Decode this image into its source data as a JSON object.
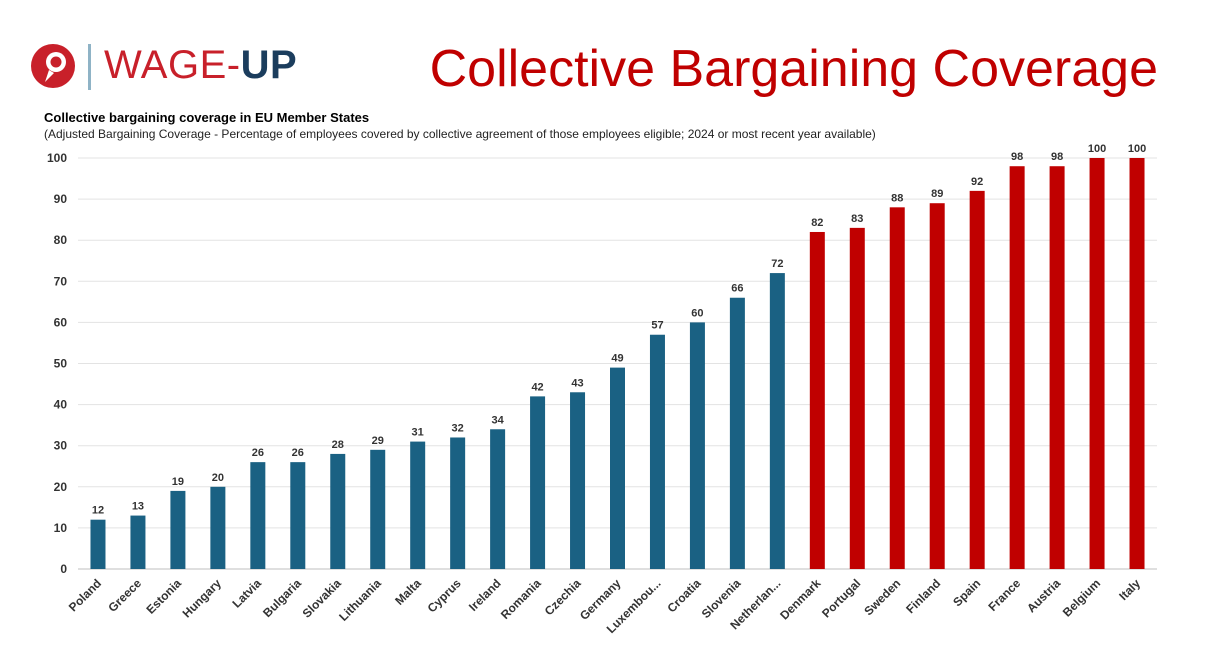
{
  "header": {
    "brand_part1": "WAGE-",
    "brand_part2": "UP",
    "page_title": "Collective Bargaining Coverage",
    "brand_red": "#c8202a",
    "brand_blue": "#1b3d5d"
  },
  "chart_data": {
    "type": "bar",
    "title": "Collective bargaining coverage in EU Member States",
    "subtitle": "(Adjusted Bargaining Coverage - Percentage of employees covered by collective agreement of those employees eligible; 2024 or most recent year available)",
    "xlabel": "",
    "ylabel": "",
    "ylim": [
      0,
      100
    ],
    "yticks": [
      0,
      10,
      20,
      30,
      40,
      50,
      60,
      70,
      80,
      90,
      100
    ],
    "grid": true,
    "categories": [
      "Poland",
      "Greece",
      "Estonia",
      "Hungary",
      "Latvia",
      "Bulgaria",
      "Slovakia",
      "Lithuania",
      "Malta",
      "Cyprus",
      "Ireland",
      "Romania",
      "Czechia",
      "Germany",
      "Luxembou...",
      "Croatia",
      "Slovenia",
      "Netherlan...",
      "Denmark",
      "Portugal",
      "Sweden",
      "Finland",
      "Spain",
      "France",
      "Austria",
      "Belgium",
      "Italy"
    ],
    "values": [
      12,
      13,
      19,
      20,
      26,
      26,
      28,
      29,
      31,
      32,
      34,
      42,
      43,
      49,
      57,
      60,
      66,
      72,
      82,
      83,
      88,
      89,
      92,
      98,
      98,
      100,
      100
    ],
    "colors": [
      "#1a6183",
      "#1a6183",
      "#1a6183",
      "#1a6183",
      "#1a6183",
      "#1a6183",
      "#1a6183",
      "#1a6183",
      "#1a6183",
      "#1a6183",
      "#1a6183",
      "#1a6183",
      "#1a6183",
      "#1a6183",
      "#1a6183",
      "#1a6183",
      "#1a6183",
      "#1a6183",
      "#c00000",
      "#c00000",
      "#c00000",
      "#c00000",
      "#c00000",
      "#c00000",
      "#c00000",
      "#c00000",
      "#c00000"
    ]
  }
}
